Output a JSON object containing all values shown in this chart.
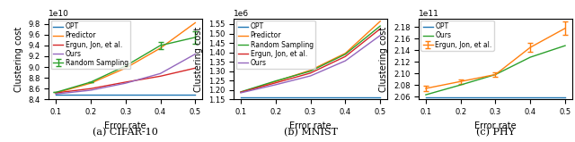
{
  "error_rates": [
    0.1,
    0.2,
    0.3,
    0.4,
    0.5
  ],
  "cifar": {
    "title": "(a) CIFAR-10",
    "ylabel": "Clustering cost",
    "xlabel": "Error rate",
    "scale_label": "1e10",
    "ylim": [
      84000000000.0,
      99000000000.0
    ],
    "yticks": [
      84000000000.0,
      86000000000.0,
      88000000000.0,
      90000000000.0,
      92000000000.0,
      94000000000.0,
      96000000000.0,
      98000000000.0
    ],
    "OPT": [
      84800000000.0,
      84800000000.0,
      84800000000.0,
      84800000000.0,
      84800000000.0
    ],
    "Predictor": [
      85200000000.0,
      87000000000.0,
      89800000000.0,
      93500000000.0,
      98200000000.0
    ],
    "RandomSampling": [
      85300000000.0,
      87200000000.0,
      90200000000.0,
      94000000000.0,
      95500000000.0
    ],
    "RandomSampling_err": [
      0.0,
      0.0,
      0.0,
      600000000.0,
      1200000000.0
    ],
    "Ergun": [
      85200000000.0,
      86000000000.0,
      87200000000.0,
      88300000000.0,
      89800000000.0
    ],
    "Ours": [
      85000000000.0,
      85700000000.0,
      87000000000.0,
      88800000000.0,
      92400000000.0
    ]
  },
  "mnist": {
    "title": "(b) MNIST",
    "ylabel": "Clustering cost",
    "xlabel": "Error rate",
    "scale_label": "1e6",
    "ylim": [
      1150000.0,
      1580000.0
    ],
    "yticks": [
      1150000.0,
      1200000.0,
      1250000.0,
      1300000.0,
      1350000.0,
      1400000.0,
      1450000.0,
      1500000.0,
      1550000.0
    ],
    "OPT": [
      1163000.0,
      1163000.0,
      1163000.0,
      1163000.0,
      1163000.0
    ],
    "Predictor": [
      1188000.0,
      1245000.0,
      1305000.0,
      1395000.0,
      1565000.0
    ],
    "RandomSampling": [
      1190000.0,
      1248000.0,
      1300000.0,
      1390000.0,
      1540000.0
    ],
    "Ergun": [
      1188000.0,
      1238000.0,
      1290000.0,
      1378000.0,
      1525000.0
    ],
    "Ours": [
      1185000.0,
      1228000.0,
      1275000.0,
      1355000.0,
      1490000.0
    ]
  },
  "phy": {
    "title": "(c) PHY",
    "ylabel": "Clustering cost",
    "xlabel": "Error rate",
    "scale_label": "1e11",
    "ylim": [
      205500000000.0,
      219500000000.0
    ],
    "yticks": [
      206000000000.0,
      208000000000.0,
      210000000000.0,
      212000000000.0,
      214000000000.0,
      216000000000.0,
      218000000000.0
    ],
    "OPT": [
      205800000000.0,
      205800000000.0,
      205800000000.0,
      205800000000.0,
      205800000000.0
    ],
    "Ergun": [
      207400000000.0,
      208600000000.0,
      209800000000.0,
      214500000000.0,
      217800000000.0
    ],
    "Ergun_err": [
      400000000.0,
      400000000.0,
      400000000.0,
      800000000.0,
      1200000000.0
    ],
    "Ours": [
      206300000000.0,
      208000000000.0,
      209800000000.0,
      212800000000.0,
      214800000000.0
    ]
  },
  "colors": {
    "OPT": "#1f77b4",
    "Predictor": "#ff7f0e",
    "RandomSampling": "#2ca02c",
    "Ergun": "#d62728",
    "Ours": "#9467bd",
    "PHY_Ergun": "#ff7f0e",
    "PHY_Ours": "#2ca02c"
  }
}
